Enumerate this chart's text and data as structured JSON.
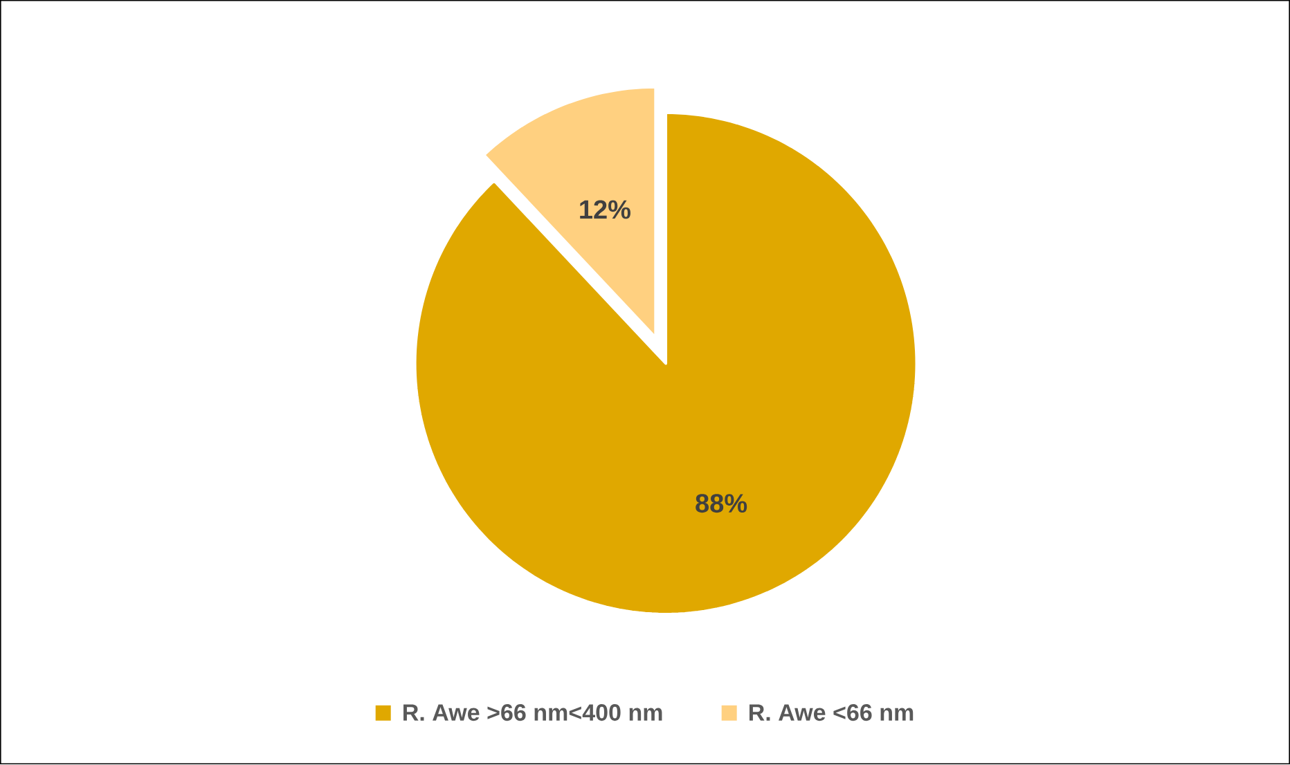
{
  "chart_data": {
    "type": "pie",
    "categories": [
      "R. Awe >66 nm<400 nm",
      "R. Awe <66 nm"
    ],
    "values": [
      88,
      12
    ],
    "colors": [
      "#e0a800",
      "#ffd080"
    ],
    "value_labels": [
      "88%",
      "12%"
    ],
    "legend": "bottom"
  }
}
